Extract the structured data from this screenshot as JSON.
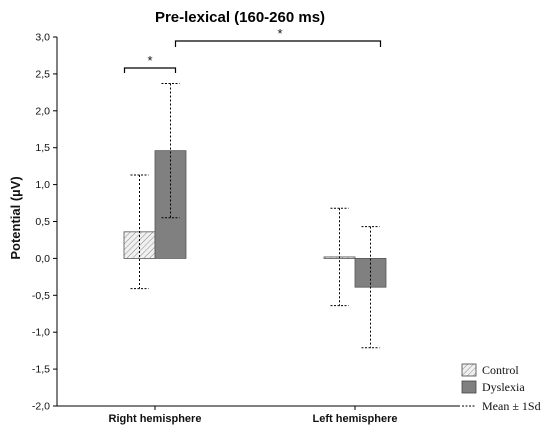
{
  "chart_data": {
    "type": "bar",
    "title": "Pre-lexical (160-260 ms)",
    "ylabel": "Potential (µV)",
    "xlabel": "",
    "categories": [
      "Right hemisphere",
      "Left hemisphere"
    ],
    "ylim": [
      -2.0,
      3.0
    ],
    "ytick_labels": [
      "3,0",
      "2,5",
      "2,0",
      "1,5",
      "1,0",
      "0,5",
      "0,0",
      "-0,5",
      "-1,0",
      "-1,5",
      "-2,0"
    ],
    "series": [
      {
        "name": "Control",
        "values": [
          0.36,
          0.02
        ],
        "sd": [
          0.77,
          0.66
        ],
        "color": "#e6e6e6",
        "pattern": "hatched"
      },
      {
        "name": "Dyslexia",
        "values": [
          1.46,
          -0.39
        ],
        "sd": [
          0.91,
          0.82
        ],
        "color": "#808080",
        "pattern": "solid"
      }
    ],
    "legend": {
      "position": "bottom-right",
      "entries": [
        "Control",
        "Dyslexia"
      ],
      "errorbar_label": "Mean ± 1Sd"
    },
    "significance": [
      {
        "label": "*",
        "from": "Right hemisphere / Control",
        "to": "Right hemisphere / Dyslexia"
      },
      {
        "label": "*",
        "from": "Right hemisphere / Dyslexia",
        "to": "Left hemisphere / Dyslexia"
      }
    ],
    "grid": false
  }
}
